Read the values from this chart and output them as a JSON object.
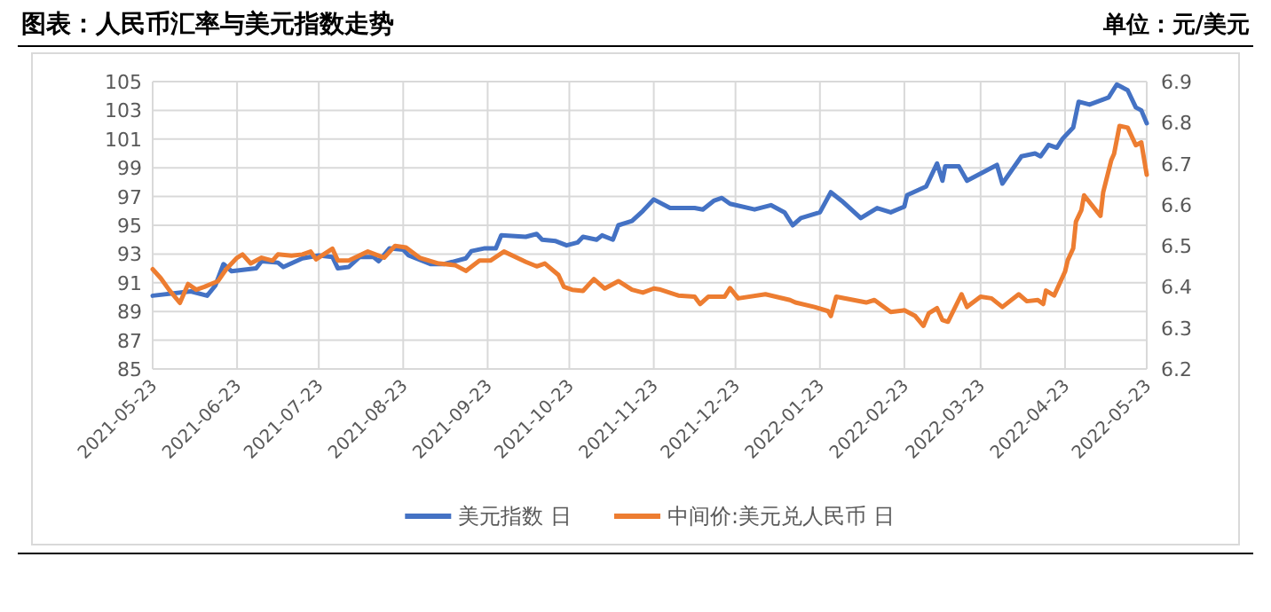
{
  "chart_data": {
    "type": "line",
    "title": "图表：人民币汇率与美元指数走势",
    "annotations": [
      "单位：元/美元"
    ],
    "xlim": [
      "2021-05-23",
      "2022-05-23"
    ],
    "xticks": [
      "2021-05-23",
      "2021-06-23",
      "2021-07-23",
      "2021-08-23",
      "2021-09-23",
      "2021-10-23",
      "2021-11-23",
      "2021-12-23",
      "2022-01-23",
      "2022-02-23",
      "2022-03-23",
      "2022-04-23",
      "2022-05-23"
    ],
    "ylim": [
      85,
      105
    ],
    "yticks": [
      85,
      87,
      89,
      91,
      93,
      95,
      97,
      99,
      101,
      103,
      105
    ],
    "y2lim": [
      6.2,
      6.9
    ],
    "y2ticks": [
      {
        "value": 6.2,
        "label": "6.2"
      },
      {
        "value": 6.3,
        "label": "6.3"
      },
      {
        "value": 6.4,
        "label": "6.4"
      },
      {
        "value": 6.5,
        "label": "6.5"
      },
      {
        "value": 6.6,
        "label": "6.6"
      },
      {
        "value": 6.7,
        "label": "6.7"
      },
      {
        "value": 6.8,
        "label": "6.8"
      },
      {
        "value": 6.9,
        "label": "6.9"
      }
    ],
    "grid": true,
    "legend": "bottom",
    "line_style": "solid",
    "marker": "none",
    "series": [
      {
        "name": "美元指数 日",
        "color": "#4472c4",
        "axis": "y",
        "x": [
          "2021-05-23",
          "2021-06-06",
          "2021-06-12",
          "2021-06-15",
          "2021-06-18",
          "2021-06-21",
          "2021-06-30",
          "2021-07-02",
          "2021-07-08",
          "2021-07-10",
          "2021-07-17",
          "2021-07-23",
          "2021-07-28",
          "2021-07-30",
          "2021-08-03",
          "2021-08-07",
          "2021-08-12",
          "2021-08-14",
          "2021-08-18",
          "2021-08-23",
          "2021-08-25",
          "2021-09-02",
          "2021-09-07",
          "2021-09-15",
          "2021-09-17",
          "2021-09-22",
          "2021-09-26",
          "2021-09-28",
          "2021-10-07",
          "2021-10-11",
          "2021-10-13",
          "2021-10-18",
          "2021-10-22",
          "2021-10-26",
          "2021-10-28",
          "2021-11-02",
          "2021-11-04",
          "2021-11-08",
          "2021-11-10",
          "2021-11-15",
          "2021-11-19",
          "2021-11-23",
          "2021-11-29",
          "2021-12-08",
          "2021-12-11",
          "2021-12-15",
          "2021-12-18",
          "2021-12-21",
          "2021-12-30",
          "2022-01-05",
          "2022-01-10",
          "2022-01-13",
          "2022-01-16",
          "2022-01-23",
          "2022-01-27",
          "2022-01-31",
          "2022-02-07",
          "2022-02-13",
          "2022-02-18",
          "2022-02-23",
          "2022-02-24",
          "2022-03-03",
          "2022-03-07",
          "2022-03-09",
          "2022-03-10",
          "2022-03-15",
          "2022-03-18",
          "2022-03-29",
          "2022-03-31",
          "2022-04-07",
          "2022-04-12",
          "2022-04-14",
          "2022-04-17",
          "2022-04-20",
          "2022-04-22",
          "2022-04-26",
          "2022-04-28",
          "2022-05-02",
          "2022-05-09",
          "2022-05-12",
          "2022-05-16",
          "2022-05-19",
          "2022-05-21",
          "2022-05-23"
        ],
        "values": [
          90.1,
          90.4,
          90.1,
          90.8,
          92.3,
          91.8,
          92.0,
          92.5,
          92.4,
          92.1,
          92.7,
          92.9,
          92.8,
          92.0,
          92.1,
          92.8,
          92.8,
          92.5,
          93.4,
          93.3,
          92.9,
          92.3,
          92.3,
          92.7,
          93.2,
          93.4,
          93.4,
          94.3,
          94.2,
          94.4,
          94.0,
          93.9,
          93.6,
          93.8,
          94.2,
          94.0,
          94.3,
          94.0,
          95.0,
          95.3,
          96.0,
          96.8,
          96.2,
          96.2,
          96.1,
          96.7,
          96.9,
          96.5,
          96.1,
          96.4,
          95.9,
          95.0,
          95.5,
          95.9,
          97.3,
          96.7,
          95.5,
          96.2,
          95.9,
          96.3,
          97.1,
          97.7,
          99.3,
          98.1,
          99.1,
          99.1,
          98.1,
          99.2,
          97.9,
          99.8,
          100.0,
          99.8,
          100.6,
          100.4,
          101.0,
          101.8,
          103.6,
          103.4,
          103.9,
          104.8,
          104.4,
          103.2,
          103.0,
          102.1
        ]
      },
      {
        "name": "中间价:美元兑人民币 日",
        "color": "#ed7d31",
        "axis": "y2",
        "x": [
          "2021-05-23",
          "2021-05-26",
          "2021-05-29",
          "2021-06-02",
          "2021-06-05",
          "2021-06-08",
          "2021-06-11",
          "2021-06-16",
          "2021-06-19",
          "2021-06-23",
          "2021-06-25",
          "2021-06-28",
          "2021-07-02",
          "2021-07-06",
          "2021-07-08",
          "2021-07-13",
          "2021-07-17",
          "2021-07-20",
          "2021-07-22",
          "2021-07-28",
          "2021-07-30",
          "2021-08-03",
          "2021-08-10",
          "2021-08-16",
          "2021-08-20",
          "2021-08-24",
          "2021-08-29",
          "2021-09-05",
          "2021-09-11",
          "2021-09-15",
          "2021-09-20",
          "2021-09-24",
          "2021-09-29",
          "2021-10-07",
          "2021-10-11",
          "2021-10-14",
          "2021-10-19",
          "2021-10-21",
          "2021-10-24",
          "2021-10-28",
          "2021-11-01",
          "2021-11-05",
          "2021-11-10",
          "2021-11-15",
          "2021-11-19",
          "2021-11-23",
          "2021-11-25",
          "2021-12-02",
          "2021-12-08",
          "2021-12-10",
          "2021-12-13",
          "2021-12-19",
          "2021-12-21",
          "2021-12-24",
          "2022-01-03",
          "2022-01-12",
          "2022-01-14",
          "2022-01-21",
          "2022-01-26",
          "2022-01-27",
          "2022-01-29",
          "2022-02-09",
          "2022-02-12",
          "2022-02-18",
          "2022-02-23",
          "2022-02-27",
          "2022-03-02",
          "2022-03-04",
          "2022-03-07",
          "2022-03-09",
          "2022-03-11",
          "2022-03-16",
          "2022-03-18",
          "2022-03-23",
          "2022-03-27",
          "2022-03-31",
          "2022-04-06",
          "2022-04-09",
          "2022-04-13",
          "2022-04-15",
          "2022-04-16",
          "2022-04-19",
          "2022-04-23",
          "2022-04-24",
          "2022-04-26",
          "2022-04-27",
          "2022-04-29",
          "2022-04-30",
          "2022-05-06",
          "2022-05-07",
          "2022-05-10",
          "2022-05-11",
          "2022-05-13",
          "2022-05-16",
          "2022-05-19",
          "2022-05-21",
          "2022-05-23"
        ],
        "values": [
          6.443,
          6.421,
          6.393,
          6.361,
          6.407,
          6.393,
          6.4,
          6.414,
          6.443,
          6.471,
          6.479,
          6.457,
          6.471,
          6.464,
          6.479,
          6.476,
          6.479,
          6.486,
          6.467,
          6.493,
          6.464,
          6.464,
          6.486,
          6.471,
          6.5,
          6.496,
          6.471,
          6.457,
          6.453,
          6.439,
          6.464,
          6.464,
          6.486,
          6.461,
          6.45,
          6.457,
          6.429,
          6.4,
          6.393,
          6.39,
          6.419,
          6.396,
          6.414,
          6.393,
          6.386,
          6.396,
          6.394,
          6.379,
          6.376,
          6.358,
          6.376,
          6.376,
          6.397,
          6.372,
          6.382,
          6.368,
          6.362,
          6.351,
          6.341,
          6.329,
          6.376,
          6.362,
          6.368,
          6.339,
          6.343,
          6.329,
          6.305,
          6.336,
          6.348,
          6.319,
          6.315,
          6.382,
          6.351,
          6.376,
          6.372,
          6.351,
          6.382,
          6.365,
          6.368,
          6.358,
          6.391,
          6.379,
          6.437,
          6.465,
          6.494,
          6.559,
          6.587,
          6.623,
          6.573,
          6.63,
          6.709,
          6.724,
          6.792,
          6.788,
          6.745,
          6.752,
          6.673
        ]
      }
    ]
  }
}
